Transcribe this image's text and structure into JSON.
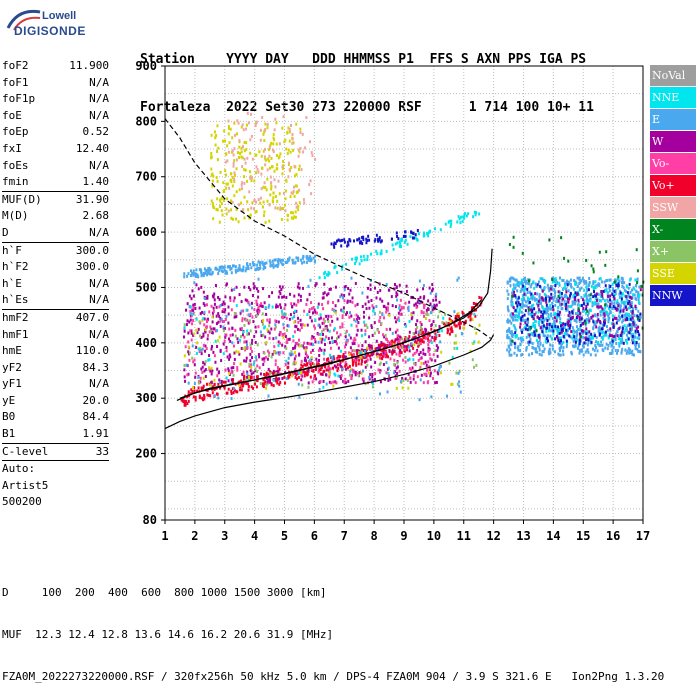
{
  "logo": {
    "top": "Lowell",
    "bottom": "DIGISONDE"
  },
  "header": {
    "line1": "Station    YYYY DAY   DDD HHMMSS P1  FFS S AXN PPS IGA PS",
    "line2": "Fortaleza  2022 Set30 273 220000 RSF      1 714 100 10+ 11"
  },
  "params": [
    {
      "name": "foF2",
      "value": "11.900"
    },
    {
      "name": "foF1",
      "value": "N/A"
    },
    {
      "name": "foF1p",
      "value": "N/A"
    },
    {
      "name": "foE",
      "value": "N/A"
    },
    {
      "name": "foEp",
      "value": "0.52"
    },
    {
      "name": "fxI",
      "value": "12.40"
    },
    {
      "name": "foEs",
      "value": "N/A"
    },
    {
      "name": "fmin",
      "value": "1.40"
    },
    {
      "name": "MUF(D)",
      "value": "31.90",
      "sep": true
    },
    {
      "name": "M(D)",
      "value": "2.68"
    },
    {
      "name": "D",
      "value": "N/A"
    },
    {
      "name": "h`F",
      "value": "300.0",
      "sep": true
    },
    {
      "name": "h`F2",
      "value": "300.0"
    },
    {
      "name": "h`E",
      "value": "N/A"
    },
    {
      "name": "h`Es",
      "value": "N/A"
    },
    {
      "name": "hmF2",
      "value": "407.0",
      "sep": true
    },
    {
      "name": "hmF1",
      "value": "N/A"
    },
    {
      "name": "hmE",
      "value": "110.0"
    },
    {
      "name": "yF2",
      "value": "84.3"
    },
    {
      "name": "yF1",
      "value": "N/A"
    },
    {
      "name": "yE",
      "value": "20.0"
    },
    {
      "name": "B0",
      "value": "84.4"
    },
    {
      "name": "B1",
      "value": "1.91"
    },
    {
      "name": "C-level",
      "value": "33",
      "sep": true
    },
    {
      "name": "Auto:",
      "value": "",
      "sep": true
    },
    {
      "name": "Artist5",
      "value": ""
    },
    {
      "name": "500200",
      "value": ""
    }
  ],
  "bottom": {
    "line1": "D     100  200  400  600  800 1000 1500 3000 [km]",
    "line2": "MUF  12.3 12.4 12.8 13.6 14.6 16.2 20.6 31.9 [MHz]",
    "line3": "FZA0M_2022273220000.RSF / 320fx256h 50 kHz 5.0 km / DPS-4 FZA0M 904 / 3.9 S 321.6 E   Ion2Png 1.3.20"
  },
  "legend": [
    {
      "label": "NoVal",
      "color": "#9e9e9e"
    },
    {
      "label": "NNE",
      "color": "#00e5ee"
    },
    {
      "label": "E",
      "color": "#4aa8ee"
    },
    {
      "label": "W",
      "color": "#a3009e"
    },
    {
      "label": "Vo-",
      "color": "#ff3fa5"
    },
    {
      "label": "Vo+",
      "color": "#f0002a"
    },
    {
      "label": "SSW",
      "color": "#f2a5a5"
    },
    {
      "label": "X-",
      "color": "#00851e"
    },
    {
      "label": "X+",
      "color": "#8bc465"
    },
    {
      "label": "SSE",
      "color": "#d4d400"
    },
    {
      "label": "NNW",
      "color": "#1414c8"
    }
  ],
  "chart_data": {
    "type": "scatter",
    "xlabel": "",
    "ylabel": "",
    "xlim": [
      1,
      17
    ],
    "ylim": [
      80,
      900
    ],
    "xticks": [
      1,
      2,
      3,
      4,
      5,
      6,
      7,
      8,
      9,
      10,
      11,
      12,
      13,
      14,
      15,
      16,
      17
    ],
    "yticks": [
      80,
      200,
      300,
      400,
      500,
      600,
      700,
      800,
      900
    ],
    "grid": true,
    "clusters": [
      {
        "series": "Vo+",
        "x": [
          1.5,
          11.6
        ],
        "y": [
          295,
          480
        ],
        "shape": "trace",
        "count": 500
      },
      {
        "series": "W",
        "x": [
          1.6,
          10.2
        ],
        "y": [
          330,
          510
        ],
        "shape": "band",
        "count": 700
      },
      {
        "series": "Vo-",
        "x": [
          1.6,
          10.0
        ],
        "y": [
          330,
          480
        ],
        "shape": "band",
        "count": 350
      },
      {
        "series": "E",
        "x": [
          1.6,
          6.0
        ],
        "y": [
          525,
          555
        ],
        "shape": "trace",
        "count": 180
      },
      {
        "series": "NNE",
        "x": [
          6.0,
          11.5
        ],
        "y": [
          520,
          640
        ],
        "shape": "trace",
        "count": 90
      },
      {
        "series": "NNW",
        "x": [
          6.5,
          9.5
        ],
        "y": [
          580,
          600
        ],
        "shape": "trace",
        "count": 60
      },
      {
        "series": "SSE",
        "x": [
          2.5,
          5.5
        ],
        "y": [
          620,
          800
        ],
        "shape": "band",
        "count": 250
      },
      {
        "series": "SSW",
        "x": [
          3.0,
          6.0
        ],
        "y": [
          640,
          820
        ],
        "shape": "band",
        "count": 120
      },
      {
        "series": "E",
        "x": [
          12.4,
          16.9
        ],
        "y": [
          380,
          520
        ],
        "shape": "band",
        "count": 900
      },
      {
        "series": "NNE",
        "x": [
          12.6,
          16.9
        ],
        "y": [
          400,
          520
        ],
        "shape": "band",
        "count": 250
      },
      {
        "series": "NNW",
        "x": [
          12.6,
          16.9
        ],
        "y": [
          400,
          510
        ],
        "shape": "band",
        "count": 200
      },
      {
        "series": "W",
        "x": [
          12.6,
          16.9
        ],
        "y": [
          410,
          500
        ],
        "shape": "band",
        "count": 120
      },
      {
        "series": "X-",
        "x": [
          12.4,
          17.0
        ],
        "y": [
          400,
          600
        ],
        "shape": "band",
        "count": 40
      },
      {
        "series": "X+",
        "x": [
          1.6,
          11.5
        ],
        "y": [
          320,
          460
        ],
        "shape": "band",
        "count": 120
      },
      {
        "series": "SSE",
        "x": [
          1.6,
          11.5
        ],
        "y": [
          320,
          460
        ],
        "shape": "band",
        "count": 80
      },
      {
        "series": "NNE",
        "x": [
          1.6,
          11.5
        ],
        "y": [
          320,
          470
        ],
        "shape": "band",
        "count": 80
      },
      {
        "series": "E",
        "x": [
          1.6,
          11.0
        ],
        "y": [
          300,
          520
        ],
        "shape": "band",
        "count": 120
      }
    ],
    "lines": [
      {
        "name": "profile",
        "style": "solid",
        "color": "#000000",
        "points": [
          [
            1.4,
            296
          ],
          [
            2,
            310
          ],
          [
            3,
            322
          ],
          [
            4,
            333
          ],
          [
            5,
            345
          ],
          [
            6,
            357
          ],
          [
            7,
            370
          ],
          [
            8,
            384
          ],
          [
            9,
            400
          ],
          [
            10,
            420
          ],
          [
            11,
            445
          ],
          [
            11.5,
            465
          ],
          [
            11.8,
            490
          ],
          [
            11.9,
            530
          ],
          [
            11.95,
            570
          ]
        ]
      },
      {
        "name": "trace",
        "style": "solid",
        "color": "#000000",
        "points": [
          [
            1.5,
            300
          ],
          [
            2.5,
            318
          ],
          [
            3.5,
            328
          ],
          [
            4.5,
            338
          ],
          [
            5.5,
            350
          ],
          [
            6.5,
            362
          ],
          [
            7.5,
            377
          ],
          [
            8.5,
            392
          ],
          [
            9.5,
            410
          ],
          [
            10.5,
            432
          ],
          [
            11.2,
            455
          ],
          [
            11.6,
            478
          ]
        ]
      },
      {
        "name": "model-lower",
        "style": "solid",
        "color": "#000000",
        "points": [
          [
            1,
            245
          ],
          [
            1.5,
            258
          ],
          [
            2,
            268
          ],
          [
            3,
            283
          ],
          [
            4,
            293
          ],
          [
            5,
            301
          ],
          [
            6,
            310
          ],
          [
            7,
            320
          ],
          [
            8,
            330
          ],
          [
            9,
            343
          ],
          [
            10,
            358
          ],
          [
            11,
            378
          ],
          [
            11.6,
            392
          ],
          [
            11.9,
            405
          ],
          [
            12,
            415
          ]
        ]
      },
      {
        "name": "model-upper",
        "style": "dashed",
        "color": "#000000",
        "points": [
          [
            1,
            805
          ],
          [
            1.5,
            770
          ],
          [
            2,
            725
          ],
          [
            3,
            660
          ],
          [
            4,
            620
          ],
          [
            5,
            593
          ],
          [
            6,
            560
          ],
          [
            7,
            535
          ],
          [
            8,
            511
          ],
          [
            9,
            490
          ],
          [
            10,
            463
          ],
          [
            11,
            437
          ],
          [
            11.5,
            423
          ],
          [
            11.9,
            408
          ]
        ]
      }
    ]
  }
}
